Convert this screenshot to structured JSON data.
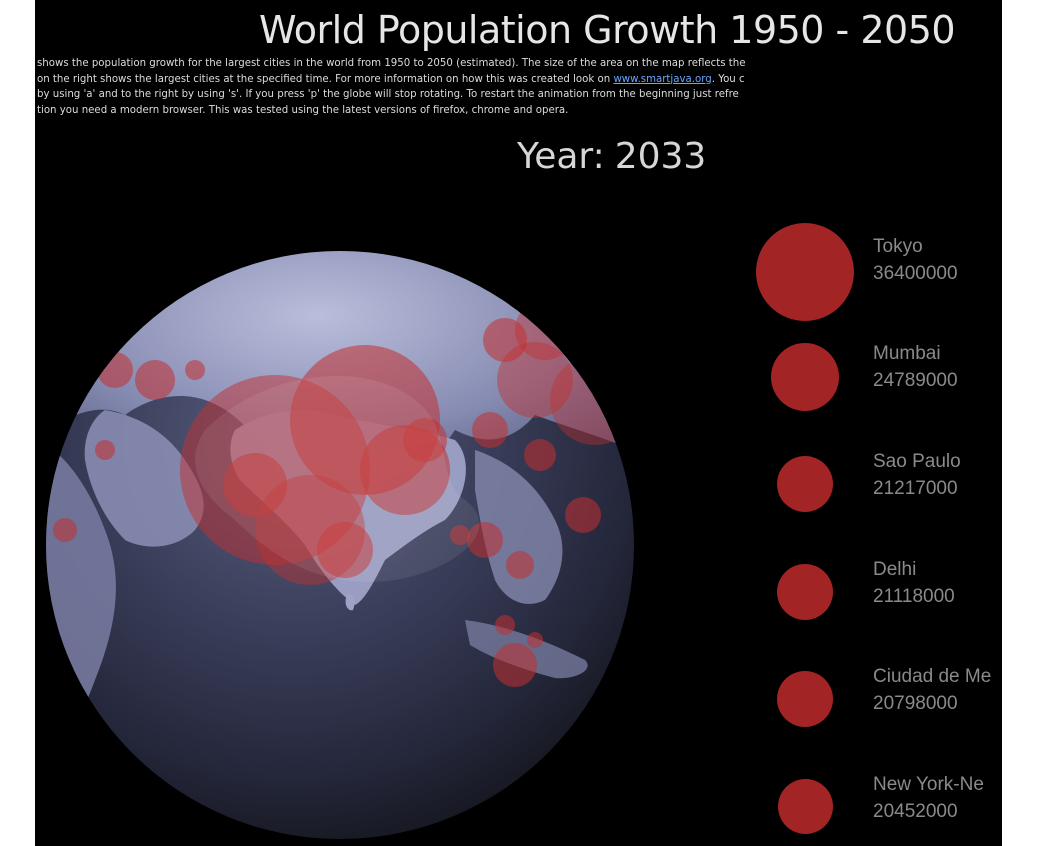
{
  "page": {
    "title": "World Population Growth 1950 - 2050",
    "description": {
      "line1": "shows the population growth for the largest cities in the world from 1950 to 2050 (estimated). The size of the area on the map reflects the",
      "line2_before": "on the right shows the largest cities at the specified time. For more information on how this was created look on ",
      "link": "www.smartjava.org",
      "line2_after": ". You c",
      "line3": "by using 'a' and to the right by using 's'. If you press 'p' the globe will stop rotating. To restart the animation from the beginning just refre",
      "line4": "tion you need a modern browser. This was tested using the latest versions of firefox, chrome and opera."
    },
    "year_label": "Year:",
    "year_value": "2033"
  },
  "colors": {
    "background": "#000000",
    "city_circle": "#a32424",
    "text_muted": "#8a8a8a",
    "link": "#6aa6ff"
  },
  "legend": [
    {
      "name": "Tokyo",
      "population": "36400000",
      "population_value": 36400000
    },
    {
      "name": "Mumbai",
      "population": "24789000",
      "population_value": 24789000
    },
    {
      "name": "Sao Paulo",
      "population": "21217000",
      "population_value": 21217000
    },
    {
      "name": "Delhi",
      "population": "21118000",
      "population_value": 21118000
    },
    {
      "name": "Ciudad de Me",
      "population": "20798000",
      "population_value": 20798000
    },
    {
      "name": "New York-Ne",
      "population": "20452000",
      "population_value": 20452000
    }
  ]
}
